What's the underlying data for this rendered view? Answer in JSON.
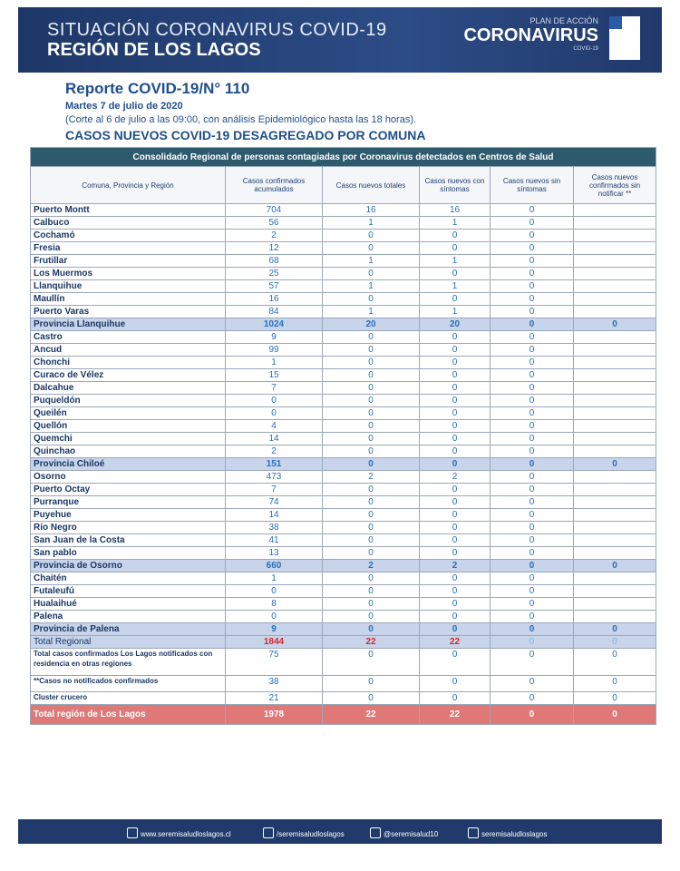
{
  "header": {
    "title": "SITUACIÓN CORONAVIRUS COVID-19",
    "subtitle": "REGIÓN DE LOS LAGOS",
    "logo_top": "PLAN DE ACCIÓN",
    "logo_main": "CORONAVIRUS",
    "logo_sub": "COVID-19"
  },
  "report": {
    "title": "Reporte COVID-19/N° 110",
    "date": "Martes 7 de julio de 2020",
    "note": "(Corte al 6 de julio a las 09:00, con análisis Epidemiológico hasta las 18 horas).",
    "section": "CASOS NUEVOS COVID-19 DESAGREGADO POR COMUNA"
  },
  "table": {
    "caption": "Consolidado Regional de personas contagiadas por Coronavirus detectados en Centros de Salud",
    "columns": [
      "Comuna, Provincia y Región",
      "Casos confirmados acumulados",
      "Casos nuevos totales",
      "Casos nuevos con síntomas",
      "Casos nuevos sin síntomas",
      "Casos nuevos confirmados sin notificar **"
    ],
    "rows": [
      [
        "Puerto Montt",
        704,
        16,
        16,
        0
      ],
      [
        "Calbuco",
        56,
        1,
        1,
        0
      ],
      [
        "Cochamó",
        2,
        0,
        0,
        0
      ],
      [
        "Fresia",
        12,
        0,
        0,
        0
      ],
      [
        "Frutillar",
        68,
        1,
        1,
        0
      ],
      [
        "Los Muermos",
        25,
        0,
        0,
        0
      ],
      [
        "Llanquihue",
        57,
        1,
        1,
        0
      ],
      [
        "Maullín",
        16,
        0,
        0,
        0
      ],
      [
        "Puerto Varas",
        84,
        1,
        1,
        0
      ],
      [
        "Provincia Llanquihue",
        1024,
        20,
        20,
        0,
        0
      ],
      [
        "Castro",
        9,
        0,
        0,
        0
      ],
      [
        "Ancud",
        99,
        0,
        0,
        0
      ],
      [
        "Chonchi",
        1,
        0,
        0,
        0
      ],
      [
        "Curaco de Vélez",
        15,
        0,
        0,
        0
      ],
      [
        "Dalcahue",
        7,
        0,
        0,
        0
      ],
      [
        "Puqueldón",
        0,
        0,
        0,
        0
      ],
      [
        "Queilén",
        0,
        0,
        0,
        0
      ],
      [
        "Quellón",
        4,
        0,
        0,
        0
      ],
      [
        "Quemchi",
        14,
        0,
        0,
        0
      ],
      [
        "Quinchao",
        2,
        0,
        0,
        0
      ],
      [
        "Provincia Chiloé",
        151,
        0,
        0,
        0,
        0
      ],
      [
        "Osorno",
        473,
        2,
        2,
        0
      ],
      [
        "Puerto Octay",
        7,
        0,
        0,
        0
      ],
      [
        "Purranque",
        74,
        0,
        0,
        0
      ],
      [
        "Puyehue",
        14,
        0,
        0,
        0
      ],
      [
        "Río Negro",
        38,
        0,
        0,
        0
      ],
      [
        "San Juan de la Costa",
        41,
        0,
        0,
        0
      ],
      [
        "San pablo",
        13,
        0,
        0,
        0
      ],
      [
        "Provincia de Osorno",
        660,
        2,
        2,
        0,
        0
      ],
      [
        "Chaitén",
        1,
        0,
        0,
        0
      ],
      [
        "Futaleufú",
        0,
        0,
        0,
        0
      ],
      [
        "Hualaihué",
        8,
        0,
        0,
        0
      ],
      [
        "Palena",
        0,
        0,
        0,
        0
      ],
      [
        "Provincia de Palena",
        9,
        0,
        0,
        0,
        0
      ],
      [
        "Total Regional",
        1844,
        22,
        22,
        0,
        0
      ],
      [
        "Total casos confirmados Los Lagos  notificados con residencia en otras regiones",
        75,
        0,
        0,
        0,
        0
      ],
      [
        "**Casos no notificados confirmados",
        38,
        0,
        0,
        0,
        0
      ],
      [
        "Cluster crucero",
        21,
        0,
        0,
        0,
        0
      ],
      [
        "Total región de Los Lagos",
        1978,
        22,
        22,
        0,
        0
      ]
    ]
  },
  "footer": {
    "links": [
      "www.seremisaludloslagos.cl",
      "/seremisaludloslagos",
      "@seremisalud10",
      "seremisaludloslagos"
    ]
  }
}
